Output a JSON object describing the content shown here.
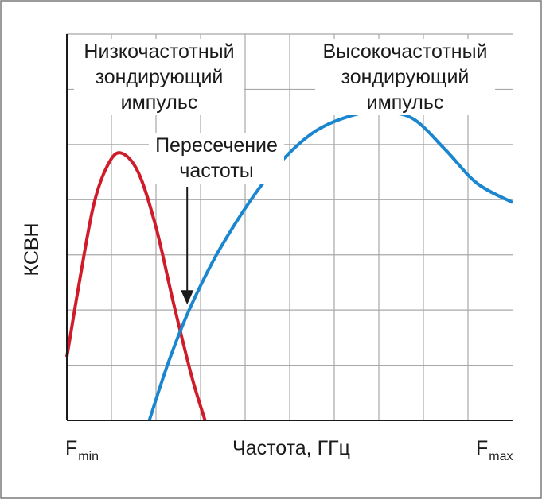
{
  "chart_data": {
    "type": "line",
    "xlabel": "Частота, ГГц",
    "ylabel": "КСВН",
    "x_tick_labels": [
      {
        "main": "F",
        "sub": "min"
      },
      {
        "main": "F",
        "sub": "max"
      }
    ],
    "xlim": [
      0,
      10
    ],
    "ylim": [
      0,
      7
    ],
    "grid": true,
    "series": [
      {
        "name": "Низкочастотный зондирующий импульс",
        "color": "#d01c2a",
        "x": [
          0.0,
          0.3,
          0.6,
          0.9,
          1.2,
          1.6,
          2.0,
          2.4,
          2.8,
          3.1
        ],
        "y": [
          1.15,
          2.6,
          3.9,
          4.6,
          4.85,
          4.5,
          3.5,
          2.1,
          0.8,
          0.0
        ]
      },
      {
        "name": "Высокочастотный зондирующий импульс",
        "color": "#1a86cf",
        "x": [
          1.85,
          2.3,
          2.8,
          3.5,
          4.5,
          5.5,
          6.5,
          7.2,
          7.8,
          8.5,
          9.2,
          10.0
        ],
        "y": [
          0.0,
          1.1,
          2.1,
          3.2,
          4.4,
          5.2,
          5.55,
          5.58,
          5.45,
          4.9,
          4.3,
          3.95
        ]
      }
    ],
    "annotations": [
      {
        "text": [
          "Низкочастотный",
          "зондирующий",
          "импульс"
        ],
        "for": "low"
      },
      {
        "text": [
          "Высокочастотный",
          "зондирующий",
          "импульс"
        ],
        "for": "high"
      },
      {
        "text": [
          "Пересечение",
          "частоты"
        ],
        "for": "crossing",
        "arrow_to": {
          "x": 2.7,
          "y": 2.1
        }
      }
    ]
  }
}
